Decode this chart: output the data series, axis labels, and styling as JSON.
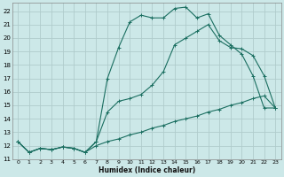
{
  "xlabel": "Humidex (Indice chaleur)",
  "xlim": [
    -0.5,
    23.5
  ],
  "ylim": [
    11,
    22.6
  ],
  "yticks": [
    11,
    12,
    13,
    14,
    15,
    16,
    17,
    18,
    19,
    20,
    21,
    22
  ],
  "xticks": [
    0,
    1,
    2,
    3,
    4,
    5,
    6,
    7,
    8,
    9,
    10,
    11,
    12,
    13,
    14,
    15,
    16,
    17,
    18,
    19,
    20,
    21,
    22,
    23
  ],
  "xtick_labels": [
    "0",
    "1",
    "2",
    "3",
    "4",
    "5",
    "6",
    "7",
    "8",
    "9",
    "10",
    "11",
    "12",
    "13",
    "14",
    "15",
    "16",
    "17",
    "18",
    "19",
    "20",
    "21",
    "22",
    "23"
  ],
  "bg_color": "#cce8e8",
  "grid_color": "#b0cccc",
  "line_color": "#1a6e60",
  "line1_x": [
    0,
    1,
    2,
    3,
    4,
    5,
    6,
    7,
    8,
    9,
    10,
    11,
    12,
    13,
    14,
    15,
    16,
    17,
    18,
    19,
    20,
    21,
    22,
    23
  ],
  "line1_y": [
    12.3,
    11.5,
    11.8,
    11.7,
    11.9,
    11.8,
    11.5,
    12.3,
    17.0,
    19.3,
    21.2,
    21.7,
    21.5,
    21.5,
    22.2,
    22.3,
    21.5,
    21.8,
    20.2,
    19.5,
    18.8,
    17.2,
    14.8,
    14.8
  ],
  "line2_x": [
    0,
    1,
    2,
    3,
    4,
    5,
    6,
    7,
    8,
    9,
    10,
    11,
    12,
    13,
    14,
    15,
    16,
    17,
    18,
    19,
    20,
    21,
    22,
    23
  ],
  "line2_y": [
    12.3,
    11.5,
    11.8,
    11.7,
    11.9,
    11.8,
    11.5,
    12.3,
    14.5,
    15.3,
    15.5,
    15.8,
    16.5,
    17.5,
    19.5,
    20.0,
    20.5,
    21.0,
    19.8,
    19.3,
    19.2,
    18.7,
    17.2,
    14.8
  ],
  "line3_x": [
    0,
    1,
    2,
    3,
    4,
    5,
    6,
    7,
    8,
    9,
    10,
    11,
    12,
    13,
    14,
    15,
    16,
    17,
    18,
    19,
    20,
    21,
    22,
    23
  ],
  "line3_y": [
    12.3,
    11.5,
    11.8,
    11.7,
    11.9,
    11.8,
    11.5,
    12.0,
    12.3,
    12.5,
    12.8,
    13.0,
    13.3,
    13.5,
    13.8,
    14.0,
    14.2,
    14.5,
    14.7,
    15.0,
    15.2,
    15.5,
    15.7,
    14.8
  ]
}
